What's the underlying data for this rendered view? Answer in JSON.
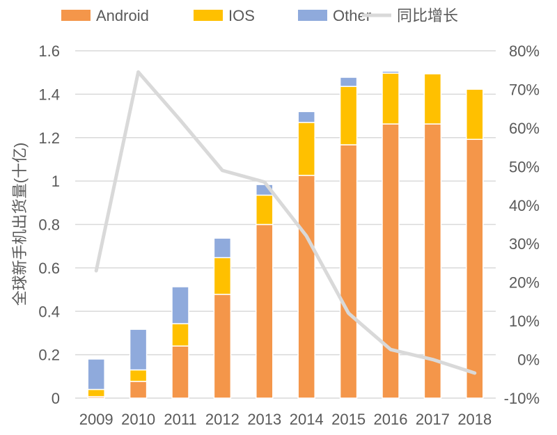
{
  "chart_data": {
    "type": "bar",
    "stacked": true,
    "title": "",
    "xlabel": "",
    "ylabel": "全球新手机出货量(十亿)",
    "categories": [
      "2009",
      "2010",
      "2011",
      "2012",
      "2013",
      "2014",
      "2015",
      "2016",
      "2017",
      "2018"
    ],
    "series": [
      {
        "name": "Android",
        "color": "#F4964A",
        "values": [
          0.007,
          0.077,
          0.24,
          0.478,
          0.8,
          1.026,
          1.167,
          1.263,
          1.263,
          1.192
        ]
      },
      {
        "name": "IOS",
        "color": "#FFC000",
        "values": [
          0.033,
          0.053,
          0.103,
          0.169,
          0.135,
          0.244,
          0.269,
          0.234,
          0.231,
          0.231
        ]
      },
      {
        "name": "Other",
        "color": "#8FAADC",
        "values": [
          0.14,
          0.187,
          0.17,
          0.09,
          0.049,
          0.05,
          0.042,
          0.009,
          0,
          0
        ]
      }
    ],
    "line_series": {
      "name": "同比增长",
      "color": "#D9D9D9",
      "axis": "right",
      "values": [
        23,
        74.5,
        62,
        49,
        46,
        32,
        12,
        2.6,
        0,
        -3.5
      ]
    },
    "ylim": [
      0,
      1.6
    ],
    "yticks": [
      "0",
      "0.2",
      "0.4",
      "0.6",
      "0.8",
      "1",
      "1.2",
      "1.4",
      "1.6"
    ],
    "y2lim": [
      -10,
      80
    ],
    "y2ticks": [
      "-10%",
      "0%",
      "10%",
      "20%",
      "30%",
      "40%",
      "50%",
      "60%",
      "70%",
      "80%"
    ],
    "grid": true,
    "legend": "top"
  }
}
